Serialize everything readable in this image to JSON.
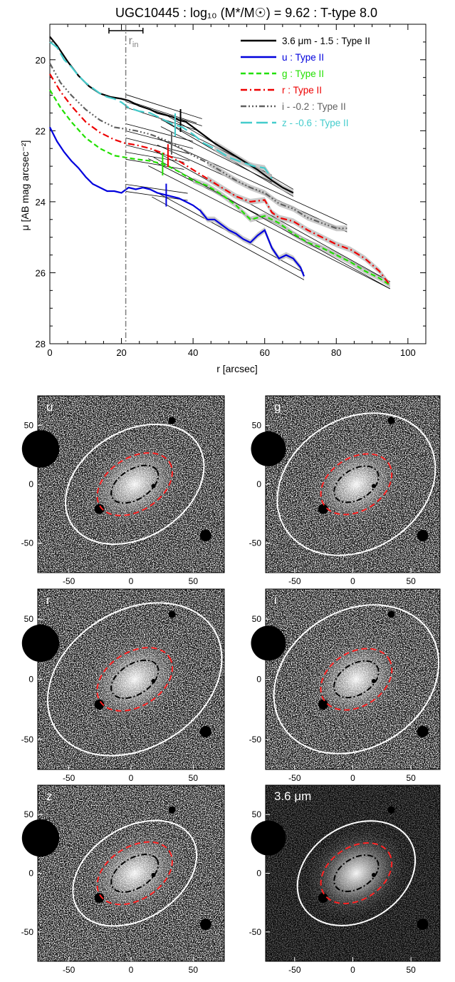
{
  "title": "UGC10445 : log₁₀ (M*/M☉) = 9.62 : T-type 8.0",
  "colors": {
    "k36": "#000000",
    "u": "#0000dd",
    "g": "#22e000",
    "r": "#ee0000",
    "i": "#606060",
    "z": "#44cccc",
    "rin": "#7f7f7f"
  },
  "chart_data": [
    {
      "type": "line",
      "title": "UGC10445 : log₁₀ (M*/M☉) = 9.62 : T-type 8.0",
      "xlabel": "r [arcsec]",
      "ylabel": "μ [AB mag arcsec⁻²]",
      "xlim": [
        0,
        105
      ],
      "ylim": [
        28,
        19
      ],
      "y_inverted": true,
      "xticks": [
        "0",
        "20",
        "40",
        "60",
        "80",
        "100"
      ],
      "yticks": [
        "20",
        "22",
        "24",
        "26",
        "28"
      ],
      "grid": false,
      "legend_position": "top-right",
      "r_in": {
        "label": "r",
        "sub": "in",
        "value": 21.2,
        "err": [
          16.5,
          26
        ]
      },
      "series": [
        {
          "name": "3.6 μm - 1.5 : Type II",
          "color": "#000000",
          "dash": "solid",
          "x": [
            0,
            2,
            5,
            8,
            11,
            14,
            17,
            20,
            22,
            25,
            28,
            30,
            32,
            34,
            36,
            38,
            42,
            46,
            50,
            54,
            58,
            62,
            65,
            68
          ],
          "y": [
            19.35,
            19.6,
            20.05,
            20.45,
            20.75,
            20.95,
            21.05,
            21.1,
            21.15,
            21.3,
            21.4,
            21.5,
            21.55,
            21.6,
            21.7,
            21.75,
            22.05,
            22.35,
            22.6,
            22.85,
            23.1,
            23.4,
            23.6,
            23.75
          ],
          "break_r": 36.5
        },
        {
          "name": "u : Type II",
          "color": "#0000dd",
          "dash": "solid",
          "x": [
            0,
            2,
            4,
            6,
            8,
            10,
            12,
            14,
            16,
            18,
            20,
            22,
            24,
            26,
            28,
            30,
            32,
            34,
            36,
            38,
            40,
            42,
            44,
            46,
            48,
            50,
            52,
            54,
            56,
            58,
            60,
            62,
            64,
            66,
            68,
            70,
            71
          ],
          "y": [
            21.9,
            22.3,
            22.6,
            22.85,
            23.05,
            23.3,
            23.5,
            23.6,
            23.7,
            23.7,
            23.75,
            23.6,
            23.65,
            23.6,
            23.65,
            23.75,
            23.8,
            23.85,
            23.9,
            24.0,
            24.1,
            24.25,
            24.5,
            24.5,
            24.65,
            24.8,
            24.9,
            25.05,
            25.15,
            24.95,
            24.8,
            25.3,
            25.6,
            25.5,
            25.6,
            25.85,
            26.1
          ],
          "break_r": 32.5
        },
        {
          "name": "g : Type II",
          "color": "#22e000",
          "dash": "dashed",
          "x": [
            0,
            3,
            6,
            10,
            14,
            18,
            21,
            24,
            28,
            32,
            36,
            40,
            44,
            48,
            52,
            56,
            60,
            64,
            68,
            72,
            76,
            80,
            84,
            88,
            92,
            95
          ],
          "y": [
            20.85,
            21.35,
            21.75,
            22.2,
            22.5,
            22.7,
            22.75,
            22.8,
            22.85,
            22.95,
            23.15,
            23.4,
            23.55,
            23.8,
            24.1,
            24.5,
            24.4,
            24.6,
            24.9,
            25.15,
            25.3,
            25.5,
            25.7,
            25.95,
            26.15,
            26.35
          ],
          "break_r": 31.5
        },
        {
          "name": "r : Type II",
          "color": "#ee0000",
          "dash": "dashdot",
          "x": [
            0,
            3,
            6,
            10,
            14,
            18,
            21,
            24,
            28,
            32,
            36,
            40,
            44,
            48,
            52,
            56,
            60,
            62,
            64,
            68,
            72,
            76,
            80,
            84,
            88,
            92,
            95
          ],
          "y": [
            20.4,
            20.9,
            21.3,
            21.75,
            22.05,
            22.25,
            22.35,
            22.4,
            22.5,
            22.65,
            22.85,
            23.1,
            23.35,
            23.6,
            23.85,
            24.0,
            23.95,
            24.3,
            24.45,
            24.55,
            24.8,
            25.0,
            25.2,
            25.35,
            25.6,
            25.95,
            26.35
          ],
          "break_r": 33.0
        },
        {
          "name": "i - -0.2 : Type II",
          "color": "#606060",
          "dash": "dashdotdotdot",
          "x": [
            0,
            3,
            6,
            10,
            14,
            18,
            21,
            24,
            28,
            32,
            36,
            40,
            44,
            48,
            52,
            56,
            60,
            64,
            68,
            72,
            76,
            80,
            83
          ],
          "y": [
            20.1,
            20.65,
            21.0,
            21.4,
            21.7,
            21.9,
            21.95,
            22.0,
            22.1,
            22.25,
            22.45,
            22.7,
            22.9,
            23.15,
            23.4,
            23.6,
            23.75,
            24.05,
            24.2,
            24.45,
            24.6,
            24.75,
            24.75
          ],
          "break_r": 34.0
        },
        {
          "name": "z - -0.6 : Type II",
          "color": "#44cccc",
          "dash": "longdash",
          "x": [
            0,
            2,
            4,
            6,
            8,
            10,
            12,
            14,
            16,
            18,
            20,
            22,
            25,
            28,
            31,
            34,
            37,
            40,
            43,
            46,
            50,
            54,
            57,
            60,
            62
          ],
          "y": [
            19.5,
            19.65,
            20.0,
            20.2,
            20.45,
            20.65,
            20.8,
            20.95,
            21.05,
            21.1,
            21.2,
            21.35,
            21.45,
            21.5,
            21.65,
            21.8,
            21.9,
            22.1,
            22.35,
            22.5,
            22.75,
            22.9,
            23.0,
            23.05,
            23.35
          ],
          "break_r": 35.0
        }
      ]
    },
    {
      "type": "heatmap",
      "panel_label": "u",
      "xticks": [
        "-50",
        "0",
        "50"
      ],
      "yticks": [
        "50",
        "0",
        "-50"
      ],
      "xlim": [
        -75,
        75
      ],
      "ylim": [
        -75,
        75
      ]
    },
    {
      "type": "heatmap",
      "panel_label": "g",
      "xticks": [
        "-50",
        "0",
        "50"
      ],
      "yticks": [
        "50",
        "0",
        "-50"
      ],
      "xlim": [
        -75,
        75
      ],
      "ylim": [
        -75,
        75
      ]
    },
    {
      "type": "heatmap",
      "panel_label": "r",
      "xticks": [
        "-50",
        "0",
        "50"
      ],
      "yticks": [
        "50",
        "0",
        "-50"
      ],
      "xlim": [
        -75,
        75
      ],
      "ylim": [
        -75,
        75
      ]
    },
    {
      "type": "heatmap",
      "panel_label": "i",
      "xticks": [
        "-50",
        "0",
        "50"
      ],
      "yticks": [
        "50",
        "0",
        "-50"
      ],
      "xlim": [
        -75,
        75
      ],
      "ylim": [
        -75,
        75
      ]
    },
    {
      "type": "heatmap",
      "panel_label": "z",
      "xticks": [
        "-50",
        "0",
        "50"
      ],
      "yticks": [
        "50",
        "0",
        "-50"
      ],
      "xlim": [
        -75,
        75
      ],
      "ylim": [
        -75,
        75
      ]
    },
    {
      "type": "heatmap",
      "panel_label": "3.6 μm",
      "xticks": [
        "-50",
        "0",
        "50"
      ],
      "yticks": [
        "50",
        "0",
        "-50"
      ],
      "xlim": [
        -75,
        75
      ],
      "ylim": [
        -75,
        75
      ]
    }
  ]
}
